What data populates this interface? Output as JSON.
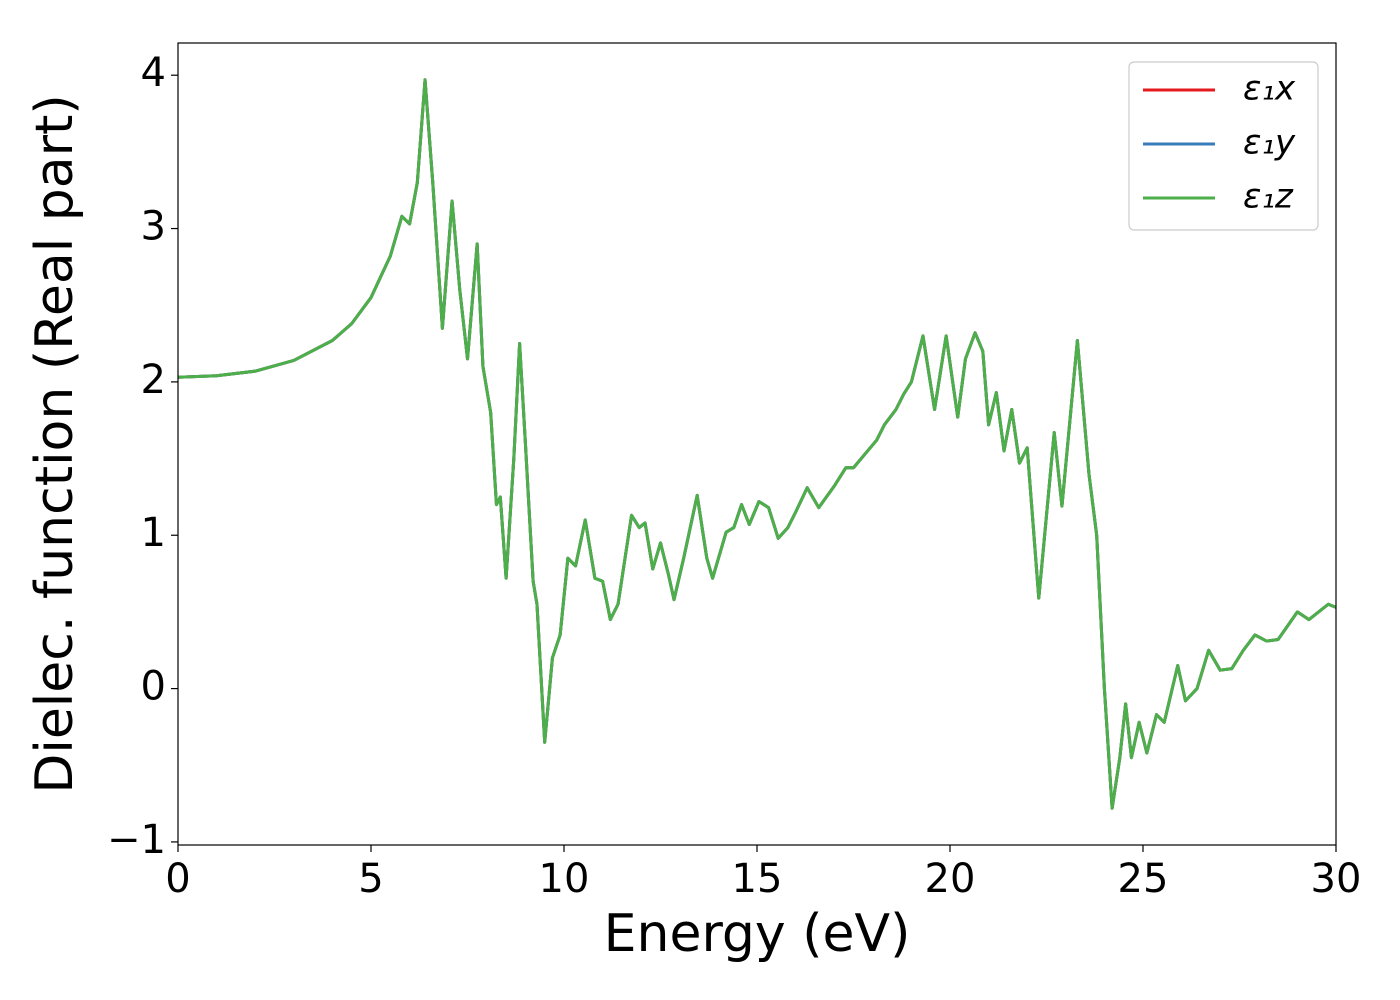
{
  "chart_data": {
    "type": "line",
    "xlabel": "Energy (eV)",
    "ylabel": "Dielec. function (Real part)",
    "x": [
      0,
      1,
      2,
      3,
      4,
      4.5,
      5,
      5.5,
      5.8,
      6.0,
      6.2,
      6.4,
      6.6,
      6.85,
      7.1,
      7.3,
      7.5,
      7.75,
      7.9,
      8.1,
      8.25,
      8.35,
      8.5,
      8.7,
      8.85,
      9.0,
      9.2,
      9.3,
      9.5,
      9.7,
      9.9,
      10.1,
      10.3,
      10.55,
      10.8,
      11.0,
      11.2,
      11.4,
      11.75,
      11.95,
      12.1,
      12.3,
      12.5,
      12.7,
      12.85,
      13.1,
      13.45,
      13.7,
      13.85,
      14.2,
      14.4,
      14.6,
      14.8,
      15.05,
      15.3,
      15.55,
      15.8,
      16.0,
      16.3,
      16.6,
      17.0,
      17.3,
      17.5,
      17.8,
      18.1,
      18.3,
      18.6,
      18.8,
      19.0,
      19.3,
      19.6,
      19.9,
      20.2,
      20.4,
      20.65,
      20.85,
      21.0,
      21.2,
      21.4,
      21.6,
      21.8,
      22.0,
      22.3,
      22.7,
      22.9,
      23.3,
      23.6,
      23.8,
      24.0,
      24.2,
      24.4,
      24.55,
      24.7,
      24.9,
      25.1,
      25.35,
      25.55,
      25.9,
      26.1,
      26.4,
      26.7,
      27.0,
      27.3,
      27.6,
      27.9,
      28.2,
      28.5,
      29.0,
      29.3,
      29.8,
      30.0
    ],
    "series": [
      {
        "name": "ε₁x",
        "color": "#e41a1c",
        "values": [
          2.03,
          2.04,
          2.07,
          2.14,
          2.27,
          2.38,
          2.55,
          2.82,
          3.08,
          3.03,
          3.3,
          3.97,
          3.3,
          2.35,
          3.18,
          2.6,
          2.15,
          2.9,
          2.1,
          1.8,
          1.2,
          1.25,
          0.72,
          1.5,
          2.25,
          1.6,
          0.7,
          0.55,
          -0.35,
          0.2,
          0.35,
          0.85,
          0.8,
          1.1,
          0.72,
          0.7,
          0.45,
          0.55,
          1.13,
          1.05,
          1.08,
          0.78,
          0.95,
          0.75,
          0.58,
          0.85,
          1.26,
          0.85,
          0.72,
          1.02,
          1.05,
          1.2,
          1.07,
          1.22,
          1.18,
          0.98,
          1.05,
          1.15,
          1.31,
          1.18,
          1.32,
          1.44,
          1.44,
          1.53,
          1.62,
          1.72,
          1.82,
          1.92,
          2.0,
          2.3,
          1.82,
          2.3,
          1.77,
          2.15,
          2.32,
          2.2,
          1.72,
          1.93,
          1.55,
          1.82,
          1.47,
          1.57,
          0.59,
          1.67,
          1.19,
          2.27,
          1.4,
          1.0,
          0.0,
          -0.78,
          -0.45,
          -0.1,
          -0.45,
          -0.22,
          -0.42,
          -0.17,
          -0.22,
          0.15,
          -0.08,
          0.0,
          0.25,
          0.12,
          0.13,
          0.25,
          0.35,
          0.31,
          0.32,
          0.5,
          0.45,
          0.55,
          0.53
        ]
      },
      {
        "name": "ε₁y",
        "color": "#377eb8",
        "values": [
          2.03,
          2.04,
          2.07,
          2.14,
          2.27,
          2.38,
          2.55,
          2.82,
          3.08,
          3.03,
          3.3,
          3.97,
          3.3,
          2.35,
          3.18,
          2.6,
          2.15,
          2.9,
          2.1,
          1.8,
          1.2,
          1.25,
          0.72,
          1.5,
          2.25,
          1.6,
          0.7,
          0.55,
          -0.35,
          0.2,
          0.35,
          0.85,
          0.8,
          1.1,
          0.72,
          0.7,
          0.45,
          0.55,
          1.13,
          1.05,
          1.08,
          0.78,
          0.95,
          0.75,
          0.58,
          0.85,
          1.26,
          0.85,
          0.72,
          1.02,
          1.05,
          1.2,
          1.07,
          1.22,
          1.18,
          0.98,
          1.05,
          1.15,
          1.31,
          1.18,
          1.32,
          1.44,
          1.44,
          1.53,
          1.62,
          1.72,
          1.82,
          1.92,
          2.0,
          2.3,
          1.82,
          2.3,
          1.77,
          2.15,
          2.32,
          2.2,
          1.72,
          1.93,
          1.55,
          1.82,
          1.47,
          1.57,
          0.59,
          1.67,
          1.19,
          2.27,
          1.4,
          1.0,
          0.0,
          -0.78,
          -0.45,
          -0.1,
          -0.45,
          -0.22,
          -0.42,
          -0.17,
          -0.22,
          0.15,
          -0.08,
          0.0,
          0.25,
          0.12,
          0.13,
          0.25,
          0.35,
          0.31,
          0.32,
          0.5,
          0.45,
          0.55,
          0.53
        ]
      },
      {
        "name": "ε₁z",
        "color": "#4daf4a",
        "values": [
          2.03,
          2.04,
          2.07,
          2.14,
          2.27,
          2.38,
          2.55,
          2.82,
          3.08,
          3.03,
          3.3,
          3.97,
          3.3,
          2.35,
          3.18,
          2.6,
          2.15,
          2.9,
          2.1,
          1.8,
          1.2,
          1.25,
          0.72,
          1.5,
          2.25,
          1.6,
          0.7,
          0.55,
          -0.35,
          0.2,
          0.35,
          0.85,
          0.8,
          1.1,
          0.72,
          0.7,
          0.45,
          0.55,
          1.13,
          1.05,
          1.08,
          0.78,
          0.95,
          0.75,
          0.58,
          0.85,
          1.26,
          0.85,
          0.72,
          1.02,
          1.05,
          1.2,
          1.07,
          1.22,
          1.18,
          0.98,
          1.05,
          1.15,
          1.31,
          1.18,
          1.32,
          1.44,
          1.44,
          1.53,
          1.62,
          1.72,
          1.82,
          1.92,
          2.0,
          2.3,
          1.82,
          2.3,
          1.77,
          2.15,
          2.32,
          2.2,
          1.72,
          1.93,
          1.55,
          1.82,
          1.47,
          1.57,
          0.59,
          1.67,
          1.19,
          2.27,
          1.4,
          1.0,
          0.0,
          -0.78,
          -0.45,
          -0.1,
          -0.45,
          -0.22,
          -0.42,
          -0.17,
          -0.22,
          0.15,
          -0.08,
          0.0,
          0.25,
          0.12,
          0.13,
          0.25,
          0.35,
          0.31,
          0.32,
          0.5,
          0.45,
          0.55,
          0.53
        ]
      }
    ],
    "xlim": [
      0,
      30
    ],
    "xticks": [
      0,
      5,
      10,
      15,
      20,
      25,
      30
    ],
    "ylim": [
      -1.02,
      4.21
    ],
    "yticks": [
      {
        "value": -1,
        "label": "−1"
      },
      0,
      1,
      2,
      3,
      4
    ],
    "grid": false,
    "legend": "upper right"
  }
}
